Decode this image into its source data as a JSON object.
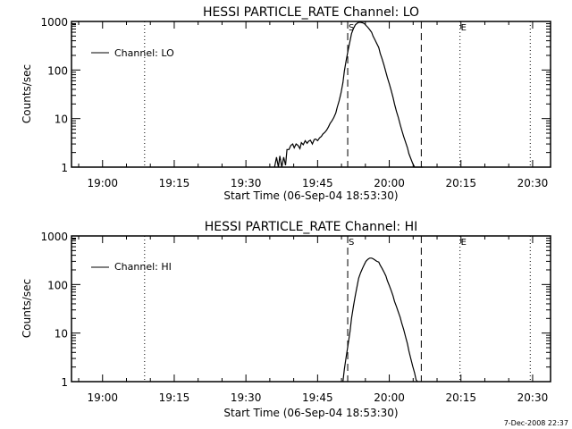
{
  "footer_timestamp": "7-Dec-2008 22:37",
  "chart_data": [
    {
      "type": "line",
      "title": "HESSI PARTICLE_RATE Channel: LO",
      "xlabel": "Start Time (06-Sep-04 18:53:30)",
      "ylabel": "Counts/sec",
      "yscale": "log",
      "ylim": [
        1,
        1000
      ],
      "xlim_minutes_from_start": [
        0,
        100.25
      ],
      "start_time": "18:53:30",
      "x_tick_labels": [
        "19:00",
        "19:15",
        "19:30",
        "19:45",
        "20:00",
        "20:15",
        "20:30"
      ],
      "x_tick_minutes": [
        6.5,
        21.5,
        36.5,
        51.5,
        66.5,
        81.5,
        96.5
      ],
      "y_tick_labels": [
        "1",
        "10",
        "100",
        "1000"
      ],
      "y_tick_values": [
        1,
        10,
        100,
        1000
      ],
      "legend": {
        "label": "Channel: LO",
        "position": "top-left"
      },
      "markers": [
        {
          "label": "S",
          "style": "dashed",
          "minute": 57.8
        },
        {
          "label": "",
          "style": "dashed",
          "minute": 73.2
        },
        {
          "label": "",
          "style": "dotted",
          "minute": 15.3
        },
        {
          "label": "E",
          "style": "dotted",
          "minute": 81.3
        },
        {
          "label": "",
          "style": "dotted",
          "minute": 96.0
        }
      ],
      "series": [
        {
          "name": "Channel: LO",
          "x_minutes": [
            42.5,
            42.9,
            43.3,
            43.6,
            44.0,
            44.4,
            44.8,
            45.1,
            45.5,
            45.9,
            46.3,
            46.6,
            47.0,
            47.4,
            47.8,
            48.1,
            48.5,
            48.9,
            49.3,
            49.6,
            50.0,
            50.4,
            50.8,
            51.1,
            51.5,
            51.9,
            52.3,
            52.6,
            53.0,
            53.4,
            53.8,
            54.1,
            54.5,
            54.9,
            55.3,
            55.6,
            56.0,
            56.4,
            56.8,
            57.1,
            57.5,
            57.9,
            58.3,
            58.6,
            59.0,
            59.4,
            59.8,
            60.1,
            60.5,
            60.9,
            61.3,
            61.6,
            62.0,
            62.4,
            62.8,
            63.1,
            63.5,
            63.9,
            64.3,
            64.6,
            65.0,
            65.4,
            65.8,
            66.1,
            66.5,
            66.9,
            67.3,
            67.6,
            68.0,
            68.4,
            68.8,
            69.1,
            69.5,
            69.9,
            70.3,
            70.6,
            71.0,
            71.4,
            71.8,
            72.1,
            72.5,
            72.9,
            73.3,
            73.6
          ],
          "values": [
            1,
            1.6,
            1,
            1.7,
            1,
            1.6,
            1.1,
            2.3,
            2.3,
            2.8,
            3.0,
            2.5,
            3.0,
            2.8,
            2.4,
            3.2,
            2.9,
            3.5,
            3.1,
            3.4,
            3.6,
            3.0,
            3.7,
            3.8,
            3.5,
            4.0,
            4.3,
            4.8,
            5.2,
            5.8,
            6.8,
            7.9,
            9.0,
            10.5,
            13,
            17,
            23,
            34,
            55,
            95,
            160,
            260,
            400,
            560,
            720,
            850,
            920,
            960,
            960,
            940,
            900,
            830,
            760,
            680,
            600,
            500,
            420,
            350,
            290,
            220,
            170,
            125,
            90,
            70,
            52,
            38,
            27,
            20,
            14,
            10.5,
            7.5,
            5.8,
            4.3,
            3.3,
            2.5,
            1.9,
            1.5,
            1.2,
            1,
            1,
            1,
            1,
            1,
            1
          ]
        }
      ]
    },
    {
      "type": "line",
      "title": "HESSI PARTICLE_RATE Channel: HI",
      "xlabel": "Start Time (06-Sep-04 18:53:30)",
      "ylabel": "Counts/sec",
      "yscale": "log",
      "ylim": [
        1,
        1000
      ],
      "xlim_minutes_from_start": [
        0,
        100.25
      ],
      "start_time": "18:53:30",
      "x_tick_labels": [
        "19:00",
        "19:15",
        "19:30",
        "19:45",
        "20:00",
        "20:15",
        "20:30"
      ],
      "x_tick_minutes": [
        6.5,
        21.5,
        36.5,
        51.5,
        66.5,
        81.5,
        96.5
      ],
      "y_tick_labels": [
        "1",
        "10",
        "100",
        "1000"
      ],
      "y_tick_values": [
        1,
        10,
        100,
        1000
      ],
      "legend": {
        "label": "Channel: HI",
        "position": "top-left"
      },
      "markers": [
        {
          "label": "S",
          "style": "dashed",
          "minute": 57.8
        },
        {
          "label": "",
          "style": "dashed",
          "minute": 73.2
        },
        {
          "label": "",
          "style": "dotted",
          "minute": 15.3
        },
        {
          "label": "E",
          "style": "dotted",
          "minute": 81.3
        },
        {
          "label": "",
          "style": "dotted",
          "minute": 96.0
        }
      ],
      "series": [
        {
          "name": "Channel: HI",
          "x_minutes": [
            56.8,
            57.1,
            57.5,
            57.9,
            58.3,
            58.6,
            59.0,
            59.4,
            59.8,
            60.1,
            60.5,
            60.9,
            61.3,
            61.6,
            62.0,
            62.4,
            62.8,
            63.1,
            63.5,
            63.9,
            64.3,
            64.6,
            65.0,
            65.4,
            65.8,
            66.1,
            66.5,
            66.9,
            67.3,
            67.6,
            68.0,
            68.4,
            68.8,
            69.1,
            69.5,
            69.9,
            70.3,
            70.6,
            71.0,
            71.4,
            71.8,
            72.1,
            72.4
          ],
          "values": [
            1,
            1.8,
            3.3,
            6,
            11,
            20,
            36,
            60,
            95,
            135,
            175,
            215,
            260,
            300,
            330,
            350,
            350,
            340,
            320,
            300,
            290,
            250,
            215,
            180,
            150,
            120,
            95,
            75,
            58,
            45,
            35,
            27,
            21,
            16,
            12,
            8.5,
            6,
            4.3,
            3,
            2.1,
            1.5,
            1.1,
            1
          ]
        }
      ]
    }
  ]
}
